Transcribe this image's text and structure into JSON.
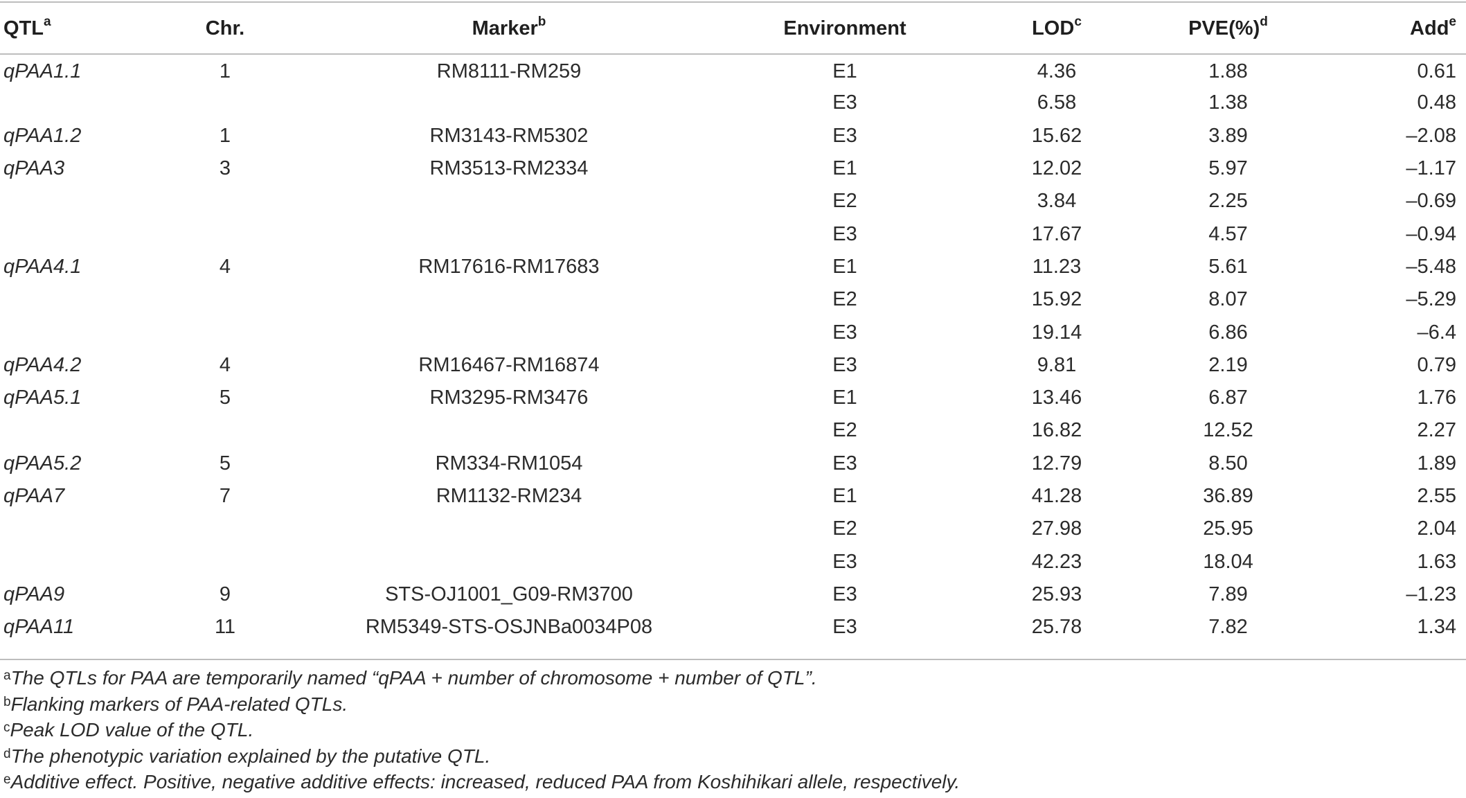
{
  "table": {
    "headers": {
      "qtl": "QTL",
      "qtl_sup": "a",
      "chr": "Chr.",
      "marker": "Marker",
      "marker_sup": "b",
      "environment": "Environment",
      "lod": "LOD",
      "lod_sup": "c",
      "pve": "PVE(%)",
      "pve_sup": "d",
      "add": "Add",
      "add_sup": "e"
    },
    "rows": [
      {
        "qtl": "qPAA1.1",
        "chr": "1",
        "marker": "RM8111-RM259",
        "env": "E1",
        "lod": "4.36",
        "pve": "1.88",
        "add": "0.61"
      },
      {
        "qtl": "",
        "chr": "",
        "marker": "",
        "env": "E3",
        "lod": "6.58",
        "pve": "1.38",
        "add": "0.48"
      },
      {
        "qtl": "qPAA1.2",
        "chr": "1",
        "marker": "RM3143-RM5302",
        "env": "E3",
        "lod": "15.62",
        "pve": "3.89",
        "add": "–2.08"
      },
      {
        "qtl": "qPAA3",
        "chr": "3",
        "marker": "RM3513-RM2334",
        "env": "E1",
        "lod": "12.02",
        "pve": "5.97",
        "add": "–1.17"
      },
      {
        "qtl": "",
        "chr": "",
        "marker": "",
        "env": "E2",
        "lod": "3.84",
        "pve": "2.25",
        "add": "–0.69"
      },
      {
        "qtl": "",
        "chr": "",
        "marker": "",
        "env": "E3",
        "lod": "17.67",
        "pve": "4.57",
        "add": "–0.94"
      },
      {
        "qtl": "qPAA4.1",
        "chr": "4",
        "marker": "RM17616-RM17683",
        "env": "E1",
        "lod": "11.23",
        "pve": "5.61",
        "add": "–5.48"
      },
      {
        "qtl": "",
        "chr": "",
        "marker": "",
        "env": "E2",
        "lod": "15.92",
        "pve": "8.07",
        "add": "–5.29"
      },
      {
        "qtl": "",
        "chr": "",
        "marker": "",
        "env": "E3",
        "lod": "19.14",
        "pve": "6.86",
        "add": "–6.4"
      },
      {
        "qtl": "qPAA4.2",
        "chr": "4",
        "marker": "RM16467-RM16874",
        "env": "E3",
        "lod": "9.81",
        "pve": "2.19",
        "add": "0.79"
      },
      {
        "qtl": "qPAA5.1",
        "chr": "5",
        "marker": "RM3295-RM3476",
        "env": "E1",
        "lod": "13.46",
        "pve": "6.87",
        "add": "1.76"
      },
      {
        "qtl": "",
        "chr": "",
        "marker": "",
        "env": "E2",
        "lod": "16.82",
        "pve": "12.52",
        "add": "2.27"
      },
      {
        "qtl": "qPAA5.2",
        "chr": "5",
        "marker": "RM334-RM1054",
        "env": "E3",
        "lod": "12.79",
        "pve": "8.50",
        "add": "1.89"
      },
      {
        "qtl": "qPAA7",
        "chr": "7",
        "marker": "RM1132-RM234",
        "env": "E1",
        "lod": "41.28",
        "pve": "36.89",
        "add": "2.55"
      },
      {
        "qtl": "",
        "chr": "",
        "marker": "",
        "env": "E2",
        "lod": "27.98",
        "pve": "25.95",
        "add": "2.04"
      },
      {
        "qtl": "",
        "chr": "",
        "marker": "",
        "env": "E3",
        "lod": "42.23",
        "pve": "18.04",
        "add": "1.63"
      },
      {
        "qtl": "qPAA9",
        "chr": "9",
        "marker": "STS-OJ1001_G09-RM3700",
        "env": "E3",
        "lod": "25.93",
        "pve": "7.89",
        "add": "–1.23"
      },
      {
        "qtl": "qPAA11",
        "chr": "11",
        "marker": "RM5349-STS-OSJNBa0034P08",
        "env": "E3",
        "lod": "25.78",
        "pve": "7.82",
        "add": "1.34"
      }
    ]
  },
  "footnotes": [
    {
      "mark": "a",
      "text": "The QTLs for PAA are temporarily named “qPAA + number of chromosome + number of QTL”."
    },
    {
      "mark": "b",
      "text": "Flanking markers of PAA-related QTLs."
    },
    {
      "mark": "c",
      "text": "Peak LOD value of the QTL."
    },
    {
      "mark": "d",
      "text": "The phenotypic variation explained by the putative QTL."
    },
    {
      "mark": "e",
      "text": "Additive effect. Positive, negative additive effects: increased, reduced PAA from Koshihikari allele, respectively."
    }
  ]
}
